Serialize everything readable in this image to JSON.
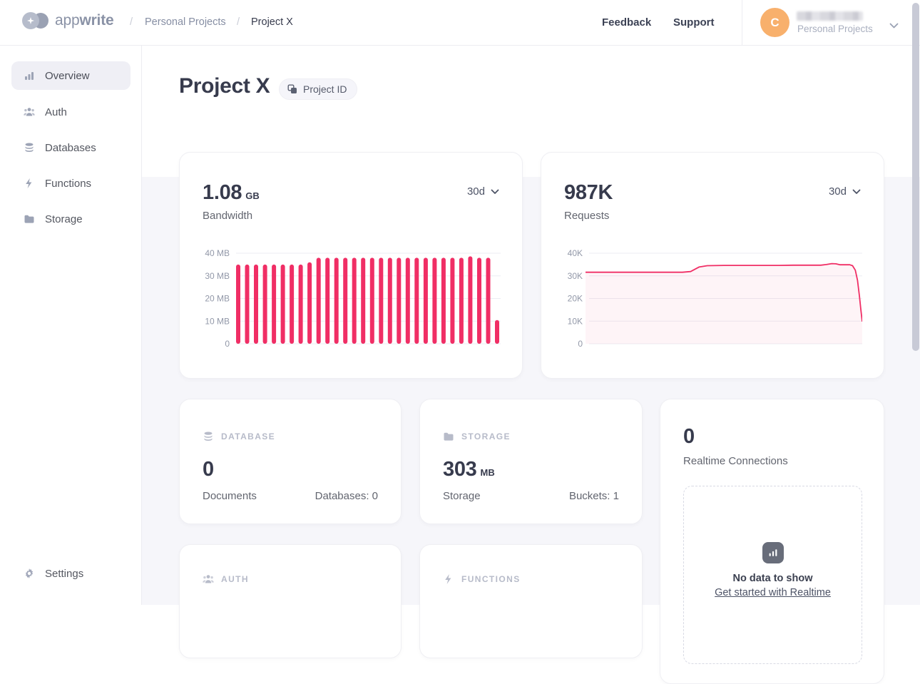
{
  "header": {
    "logo": {
      "text_light": "app",
      "text_bold": "write"
    },
    "breadcrumb": {
      "separator": "/",
      "parent": "Personal Projects",
      "current": "Project X"
    },
    "nav": {
      "feedback": "Feedback",
      "support": "Support"
    },
    "user": {
      "initial": "C",
      "name_redacted": true,
      "org": "Personal Projects"
    }
  },
  "sidebar": {
    "items": [
      {
        "label": "Overview",
        "icon": "bar-chart-icon",
        "active": true
      },
      {
        "label": "Auth",
        "icon": "users-icon",
        "active": false
      },
      {
        "label": "Databases",
        "icon": "database-icon",
        "active": false
      },
      {
        "label": "Functions",
        "icon": "lightning-icon",
        "active": false
      },
      {
        "label": "Storage",
        "icon": "folder-icon",
        "active": false
      }
    ],
    "settings": {
      "label": "Settings",
      "icon": "gear-icon"
    }
  },
  "page": {
    "title": "Project X",
    "project_id_badge": "Project ID"
  },
  "cards": {
    "bandwidth": {
      "value": "1.08",
      "unit": "GB",
      "label": "Bandwidth",
      "range": "30d"
    },
    "requests": {
      "value": "987K",
      "label": "Requests",
      "range": "30d"
    },
    "database": {
      "category": "DATABASE",
      "value": "0",
      "label": "Documents",
      "meta": "Databases: 0"
    },
    "storage": {
      "category": "STORAGE",
      "value": "303",
      "unit": "MB",
      "label": "Storage",
      "meta": "Buckets: 1"
    },
    "realtime": {
      "value": "0",
      "label": "Realtime Connections",
      "empty_title": "No data to show",
      "empty_link": "Get started with Realtime"
    },
    "auth": {
      "category": "AUTH"
    },
    "functions": {
      "category": "FUNCTIONS"
    }
  },
  "chart_data": [
    {
      "id": "bandwidth",
      "type": "bar",
      "title": "Bandwidth",
      "period": "30d",
      "total": "1.08 GB",
      "ylabel": "MB",
      "ylim": [
        0,
        40
      ],
      "ymax": 40,
      "y_ticks": [
        {
          "label": "40 MB",
          "value": 40
        },
        {
          "label": "30 MB",
          "value": 30
        },
        {
          "label": "20 MB",
          "value": 20
        },
        {
          "label": "10 MB",
          "value": 10
        },
        {
          "label": "0",
          "value": 0
        }
      ],
      "x_count": 30,
      "values": [
        35,
        35,
        35,
        35,
        35,
        35,
        35,
        35,
        36,
        38,
        38,
        38,
        38,
        38,
        38,
        38,
        38,
        38,
        38,
        38,
        38,
        38,
        38,
        38,
        38,
        38,
        38.6,
        38,
        38,
        10.5
      ],
      "color": "#F02E65",
      "grid": true,
      "legend": false
    },
    {
      "id": "requests",
      "type": "line",
      "title": "Requests",
      "period": "30d",
      "total": "987K",
      "ylabel": "K requests",
      "ylim": [
        0,
        40
      ],
      "ymax": 40,
      "y_ticks": [
        {
          "label": "40K",
          "value": 40
        },
        {
          "label": "30K",
          "value": 30
        },
        {
          "label": "20K",
          "value": 20
        },
        {
          "label": "10K",
          "value": 10
        },
        {
          "label": "0",
          "value": 0
        }
      ],
      "points": [
        [
          0,
          31.6
        ],
        [
          0.05,
          31.6
        ],
        [
          0.1,
          31.6
        ],
        [
          0.15,
          31.6
        ],
        [
          0.2,
          31.6
        ],
        [
          0.25,
          31.6
        ],
        [
          0.3,
          31.6
        ],
        [
          0.35,
          31.6
        ],
        [
          0.38,
          31.9
        ],
        [
          0.41,
          33.9
        ],
        [
          0.44,
          34.5
        ],
        [
          0.5,
          34.6
        ],
        [
          0.55,
          34.6
        ],
        [
          0.6,
          34.6
        ],
        [
          0.65,
          34.6
        ],
        [
          0.7,
          34.6
        ],
        [
          0.75,
          34.7
        ],
        [
          0.8,
          34.7
        ],
        [
          0.85,
          34.7
        ],
        [
          0.87,
          35.0
        ],
        [
          0.89,
          35.4
        ],
        [
          0.905,
          35.3
        ],
        [
          0.92,
          34.9
        ],
        [
          0.94,
          34.9
        ],
        [
          0.955,
          34.9
        ],
        [
          0.965,
          34.5
        ],
        [
          0.975,
          32.5
        ],
        [
          0.983,
          28
        ],
        [
          0.99,
          21
        ],
        [
          0.995,
          15
        ],
        [
          1,
          9.8
        ]
      ],
      "color": "#F02E65",
      "area_fill": "rgba(240,46,101,0.05)",
      "grid": true,
      "legend": false
    }
  ],
  "colors": {
    "accent": "#F02E65",
    "text_dark": "#373B4D",
    "text_gray": "#62656F",
    "text_faint": "#B7BBC9",
    "avatar_bg": "#F8B06C",
    "sidebar_active_bg": "#EFEFF5",
    "main_bg": "#F6F6FA",
    "grid_line": "#ECEDF3"
  }
}
